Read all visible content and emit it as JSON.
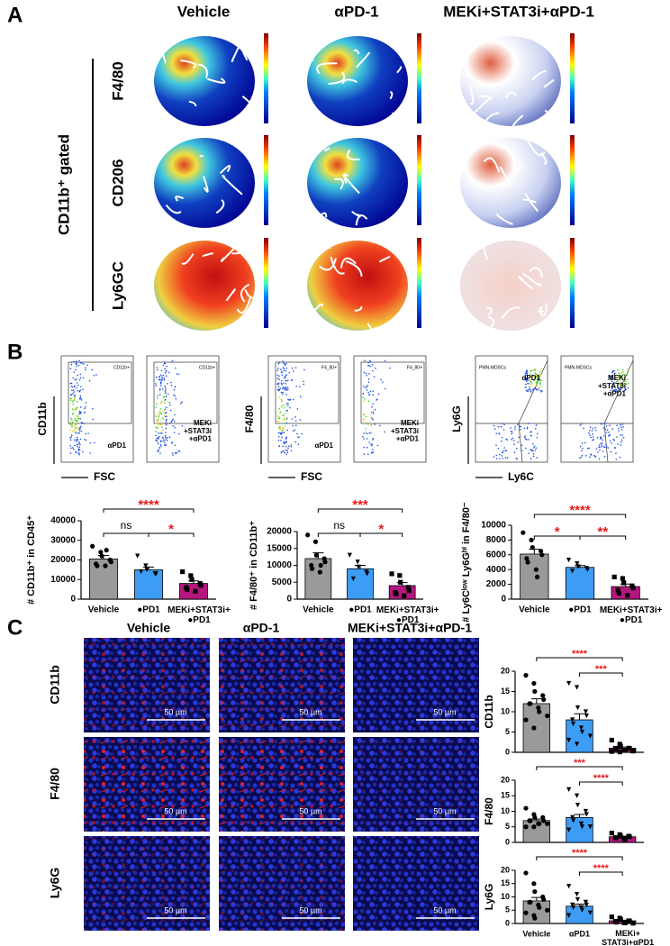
{
  "panel_a": {
    "label": "A",
    "columns": [
      "Vehicle",
      "αPD-1",
      "MEKi+STAT3i+αPD-1"
    ],
    "rows": [
      "F4/80",
      "CD206",
      "Ly6GC"
    ],
    "side_label": "CD11b⁺ gated"
  },
  "panel_b": {
    "label": "B",
    "flow": [
      {
        "y_label": "CD11b",
        "x_label": "FSC",
        "gate": "CD11b+",
        "samples": [
          "αPD1",
          "MEKi +STAT3i +αPD1"
        ]
      },
      {
        "y_label": "F4/80",
        "x_label": "FSC",
        "gate": "F4_80+",
        "samples": [
          "αPD1",
          "MEKi +STAT3i +αPD1"
        ]
      },
      {
        "y_label": "Ly6G",
        "x_label": "Ly6C",
        "gate": "PMN-MDSCs",
        "samples": [
          "αPD1",
          "MEKi +STAT3i +αPD1"
        ]
      }
    ]
  },
  "panel_c": {
    "label": "C",
    "columns": [
      "Vehicle",
      "αPD-1",
      "MEKi+STAT3i+αPD-1"
    ],
    "rows": [
      "CD11b",
      "F4/80",
      "Ly6G"
    ],
    "scale_bar": "50 µm"
  },
  "chart_data": [
    {
      "type": "bar",
      "y_label": "# CD11b⁺ in CD45⁺",
      "categories": [
        "Vehicle",
        "●PD1",
        "MEKi+STAT3i+ ●PD1"
      ],
      "values": [
        20500,
        15000,
        8000
      ],
      "errors": [
        1800,
        1400,
        1300
      ],
      "points": [
        [
          27000,
          24000,
          22000,
          20000,
          19000,
          18000,
          17000,
          17000,
          25000
        ],
        [
          22000,
          17000,
          15000,
          13000,
          13000,
          14000
        ],
        [
          14000,
          12000,
          10000,
          8000,
          7000,
          6000,
          5000,
          4000
        ]
      ],
      "colors": [
        "#9a9a9a",
        "#3d9df5",
        "#b5177f"
      ],
      "ylim": [
        0,
        40000
      ],
      "yticks": [
        0,
        10000,
        20000,
        30000,
        40000
      ],
      "annotations": [
        {
          "from": 0,
          "to": 2,
          "label": "****",
          "color": "#e8191c"
        },
        {
          "from": 0,
          "to": 1,
          "label": "ns",
          "color": "#000000"
        },
        {
          "from": 1,
          "to": 2,
          "label": "*",
          "color": "#e8191c"
        }
      ]
    },
    {
      "type": "bar",
      "y_label": "# F4/80⁺ in CD11b⁺",
      "categories": [
        "Vehicle",
        "●PD1",
        "MEKi+STAT3i+ ●PD1"
      ],
      "values": [
        12000,
        9000,
        4000
      ],
      "errors": [
        1700,
        1000,
        900
      ],
      "points": [
        [
          19000,
          17000,
          13000,
          12000,
          11000,
          10000,
          9000,
          8000,
          10000
        ],
        [
          13000,
          11000,
          9500,
          8000,
          7500,
          6000
        ],
        [
          7500,
          7000,
          5000,
          3500,
          2500,
          2000,
          1500,
          1000
        ]
      ],
      "colors": [
        "#9a9a9a",
        "#3d9df5",
        "#b5177f"
      ],
      "ylim": [
        0,
        20000
      ],
      "yticks": [
        0,
        5000,
        10000,
        15000,
        20000
      ],
      "annotations": [
        {
          "from": 0,
          "to": 2,
          "label": "***",
          "color": "#e8191c"
        },
        {
          "from": 0,
          "to": 1,
          "label": "ns",
          "color": "#000000"
        },
        {
          "from": 1,
          "to": 2,
          "label": "*",
          "color": "#e8191c"
        }
      ]
    },
    {
      "type": "bar",
      "y_label": "# Ly6Cˡᵒʷ Ly6Gʰⁱ in F4/80⁻",
      "categories": [
        "Vehicle",
        "●PD1",
        "MEKi+STAT3i+ ●PD1"
      ],
      "values": [
        6100,
        4300,
        1700
      ],
      "errors": [
        650,
        250,
        350
      ],
      "points": [
        [
          9000,
          8000,
          7000,
          6500,
          6000,
          5500,
          5000,
          4000,
          3000
        ],
        [
          5300,
          4800,
          4400,
          4200,
          4000,
          3800
        ],
        [
          3000,
          2800,
          2200,
          1800,
          1500,
          1200,
          800,
          500
        ]
      ],
      "colors": [
        "#9a9a9a",
        "#3d9df5",
        "#b5177f"
      ],
      "ylim": [
        0,
        10000
      ],
      "yticks": [
        0,
        2000,
        4000,
        6000,
        8000,
        10000
      ],
      "annotations": [
        {
          "from": 0,
          "to": 2,
          "label": "****",
          "color": "#e8191c"
        },
        {
          "from": 0,
          "to": 1,
          "label": "*",
          "color": "#e8191c"
        },
        {
          "from": 1,
          "to": 2,
          "label": "**",
          "color": "#e8191c"
        }
      ]
    },
    {
      "type": "bar",
      "y_label": "CD11b",
      "categories": [
        null,
        null,
        null
      ],
      "values": [
        12,
        8,
        1
      ],
      "errors": [
        1.2,
        1.5,
        0.3
      ],
      "points": [
        [
          19,
          17,
          15,
          14,
          13,
          12,
          12,
          11,
          10,
          9,
          8,
          6
        ],
        [
          17,
          16,
          11,
          10,
          9,
          8,
          7,
          6,
          5,
          4,
          3,
          2
        ],
        [
          3,
          2,
          1.5,
          1,
          1,
          1,
          0.8,
          0.5,
          0.5,
          0.3,
          0.2,
          0.1
        ]
      ],
      "colors": [
        "#9a9a9a",
        "#3d9df5",
        "#b5177f"
      ],
      "ylim": [
        0,
        20
      ],
      "yticks": [
        0,
        5,
        10,
        15,
        20
      ],
      "annotations": [
        {
          "from": 0,
          "to": 2,
          "label": "****",
          "color": "#e8191c"
        },
        {
          "from": 1,
          "to": 2,
          "label": "***",
          "color": "#e8191c"
        }
      ]
    },
    {
      "type": "bar",
      "y_label": "F4/80",
      "categories": [
        null,
        null,
        null
      ],
      "values": [
        7,
        8,
        1.8
      ],
      "errors": [
        0.5,
        1,
        0.2
      ],
      "points": [
        [
          11,
          9,
          8,
          8,
          7,
          7,
          7,
          6,
          6,
          6,
          5,
          5
        ],
        [
          17,
          15,
          12,
          10,
          9,
          8,
          7,
          6,
          5,
          5,
          4
        ],
        [
          3,
          2.5,
          2,
          2,
          1.8,
          1.5,
          1.5,
          1.2,
          1
        ]
      ],
      "colors": [
        "#9a9a9a",
        "#3d9df5",
        "#b5177f"
      ],
      "ylim": [
        0,
        20
      ],
      "yticks": [
        0,
        5,
        10,
        15,
        20
      ],
      "annotations": [
        {
          "from": 0,
          "to": 2,
          "label": "***",
          "color": "#e8191c"
        },
        {
          "from": 1,
          "to": 2,
          "label": "****",
          "color": "#e8191c"
        }
      ]
    },
    {
      "type": "bar",
      "y_label": "Ly6G",
      "categories": [
        "Vehicle",
        "αPD1",
        "MEKi+ STAT3i+αPD1"
      ],
      "values": [
        8.5,
        6.5,
        1
      ],
      "errors": [
        1.3,
        0.8,
        0.25
      ],
      "points": [
        [
          19,
          15,
          12,
          10,
          9,
          8,
          8,
          7,
          6,
          5,
          4,
          3,
          2
        ],
        [
          14,
          11,
          9,
          8,
          7,
          7,
          6,
          6,
          5,
          4,
          3
        ],
        [
          2.5,
          2,
          1.5,
          1,
          1,
          0.8,
          0.5,
          0.3,
          0.2,
          0.1
        ]
      ],
      "colors": [
        "#9a9a9a",
        "#3d9df5",
        "#b5177f"
      ],
      "ylim": [
        0,
        20
      ],
      "yticks": [
        0,
        5,
        10,
        15,
        20
      ],
      "annotations": [
        {
          "from": 0,
          "to": 2,
          "label": "****",
          "color": "#e8191c"
        },
        {
          "from": 1,
          "to": 2,
          "label": "****",
          "color": "#e8191c"
        }
      ]
    }
  ]
}
